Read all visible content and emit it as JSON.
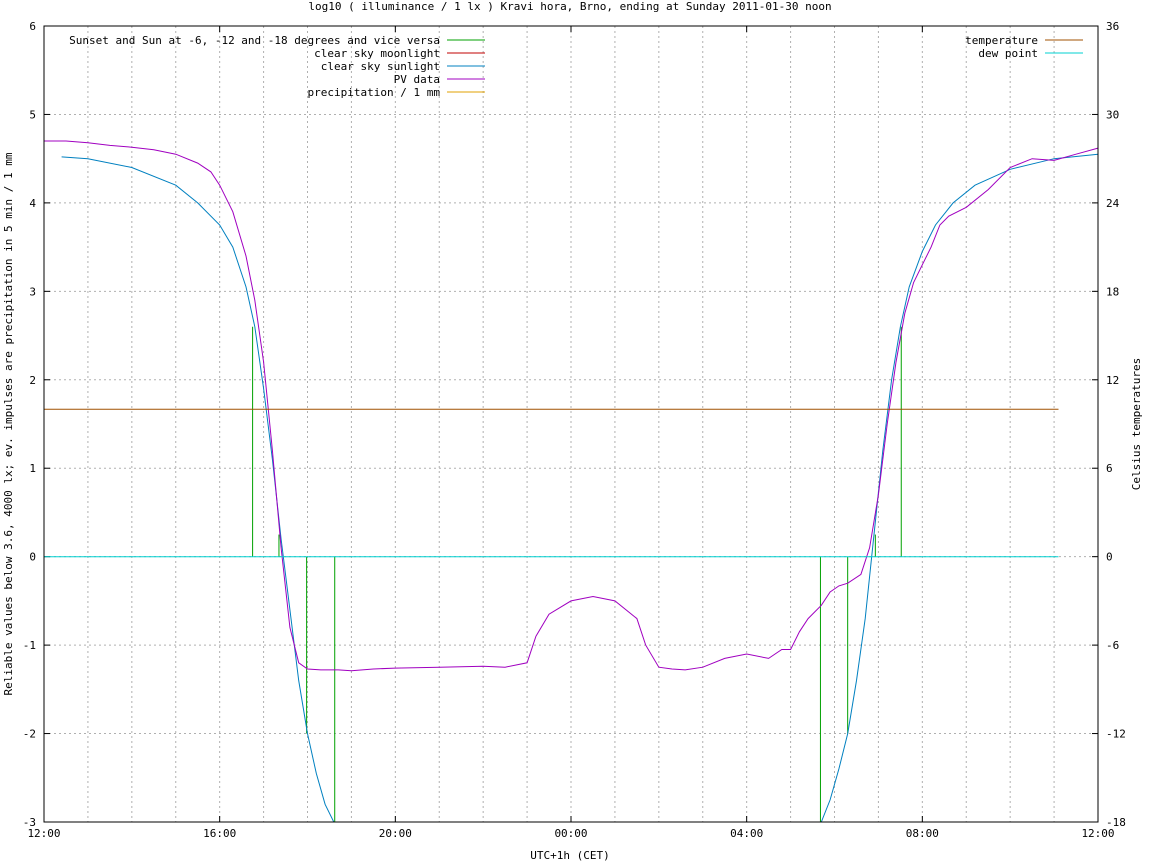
{
  "chart_data": {
    "type": "line",
    "title": "log10 ( illuminance / 1 lx ) Kravi hora, Brno, ending at Sunday 2011-01-30 noon",
    "xlabel": "UTC+1h (CET)",
    "ylabel": "Reliable values below 3.6, 4000 lx; ev. impulses are precipitation in 5 min / 1 mm",
    "y2label": "Celsius temperatures",
    "xlim": [
      0,
      24
    ],
    "ylim": [
      -3,
      6
    ],
    "y2lim": [
      -18,
      36
    ],
    "x_ticks": [
      {
        "value": 0,
        "label": "12:00"
      },
      {
        "value": 4,
        "label": "16:00"
      },
      {
        "value": 8,
        "label": "20:00"
      },
      {
        "value": 12,
        "label": "00:00"
      },
      {
        "value": 16,
        "label": "04:00"
      },
      {
        "value": 20,
        "label": "08:00"
      },
      {
        "value": 24,
        "label": "12:00"
      }
    ],
    "y_ticks": [
      {
        "value": -3,
        "label": "-3"
      },
      {
        "value": -2,
        "label": "-2"
      },
      {
        "value": -1,
        "label": "-1"
      },
      {
        "value": 0,
        "label": "0"
      },
      {
        "value": 1,
        "label": "1"
      },
      {
        "value": 2,
        "label": "2"
      },
      {
        "value": 3,
        "label": "3"
      },
      {
        "value": 4,
        "label": "4"
      },
      {
        "value": 5,
        "label": "5"
      },
      {
        "value": 6,
        "label": "6"
      }
    ],
    "y2_ticks": [
      {
        "value": -18,
        "label": "-18"
      },
      {
        "value": -12,
        "label": "-12"
      },
      {
        "value": -6,
        "label": "-6"
      },
      {
        "value": 0,
        "label": "0"
      },
      {
        "value": 6,
        "label": "6"
      },
      {
        "value": 12,
        "label": "12"
      },
      {
        "value": 18,
        "label": "18"
      },
      {
        "value": 24,
        "label": "24"
      },
      {
        "value": 30,
        "label": "30"
      },
      {
        "value": 36,
        "label": "36"
      }
    ],
    "grid": true,
    "legend_left": [
      {
        "name": "Sunset and Sun at -6, -12 and -18 degrees and vice versa",
        "color": "#00a000"
      },
      {
        "name": "clear sky moonlight",
        "color": "#c00000"
      },
      {
        "name": "clear sky sunlight",
        "color": "#0080c0"
      },
      {
        "name": "PV data",
        "color": "#a000c0"
      },
      {
        "name": "precipitation / 1 mm",
        "color": "#e0a000"
      }
    ],
    "legend_right": [
      {
        "name": "temperature",
        "color": "#a05000"
      },
      {
        "name": "dew point",
        "color": "#00d0d0"
      }
    ],
    "sun_impulses": [
      {
        "x": 4.75,
        "y": 2.6
      },
      {
        "x": 5.35,
        "y": 0.25
      },
      {
        "x": 5.98,
        "y": -2.0
      },
      {
        "x": 6.62,
        "y": -3.0
      },
      {
        "x": 17.68,
        "y": -3.0
      },
      {
        "x": 18.3,
        "y": -2.0
      },
      {
        "x": 18.93,
        "y": 0.25
      },
      {
        "x": 19.52,
        "y": 2.6
      }
    ],
    "series": [
      {
        "name": "clear sky sunlight",
        "color": "#0080c0",
        "x": [
          0.4,
          1,
          2,
          3,
          3.5,
          4,
          4.3,
          4.6,
          4.8,
          5.0,
          5.2,
          5.4,
          5.6,
          5.8,
          6.0,
          6.2,
          6.4,
          6.6,
          17.7,
          17.9,
          18.1,
          18.3,
          18.5,
          18.7,
          18.9,
          19.1,
          19.3,
          19.5,
          19.7,
          20.0,
          20.3,
          20.7,
          21.2,
          22,
          23,
          24
        ],
        "y": [
          4.52,
          4.5,
          4.4,
          4.2,
          4.0,
          3.75,
          3.5,
          3.05,
          2.6,
          1.9,
          1.1,
          0.2,
          -0.6,
          -1.4,
          -2.0,
          -2.45,
          -2.8,
          -3.0,
          -3.0,
          -2.75,
          -2.4,
          -2.0,
          -1.4,
          -0.7,
          0.25,
          1.2,
          2.0,
          2.6,
          3.05,
          3.45,
          3.75,
          4.0,
          4.2,
          4.38,
          4.5,
          4.55
        ]
      },
      {
        "name": "PV data",
        "color": "#a000c0",
        "x": [
          0,
          0.5,
          1,
          1.5,
          2,
          2.5,
          3,
          3.5,
          3.8,
          4.0,
          4.3,
          4.6,
          4.8,
          5.0,
          5.2,
          5.4,
          5.6,
          5.8,
          6.0,
          6.3,
          6.7,
          7,
          7.5,
          8,
          9,
          10,
          10.5,
          11,
          11.2,
          11.5,
          12,
          12.5,
          13,
          13.5,
          13.7,
          14,
          14.3,
          14.6,
          15,
          15.5,
          16,
          16.5,
          16.8,
          17,
          17.2,
          17.4,
          17.7,
          17.9,
          18.1,
          18.3,
          18.6,
          18.8,
          19.0,
          19.2,
          19.4,
          19.6,
          19.8,
          20.0,
          20.2,
          20.4,
          20.6,
          21.0,
          21.5,
          22,
          22.5,
          23,
          23.5,
          24
        ],
        "y": [
          4.7,
          4.7,
          4.68,
          4.65,
          4.63,
          4.6,
          4.55,
          4.45,
          4.35,
          4.2,
          3.9,
          3.4,
          2.9,
          2.2,
          1.2,
          0.1,
          -0.8,
          -1.2,
          -1.27,
          -1.28,
          -1.28,
          -1.29,
          -1.27,
          -1.26,
          -1.25,
          -1.24,
          -1.25,
          -1.2,
          -0.9,
          -0.65,
          -0.5,
          -0.45,
          -0.5,
          -0.7,
          -1.0,
          -1.25,
          -1.27,
          -1.28,
          -1.25,
          -1.15,
          -1.1,
          -1.15,
          -1.05,
          -1.05,
          -0.85,
          -0.7,
          -0.55,
          -0.4,
          -0.33,
          -0.3,
          -0.2,
          0.1,
          0.7,
          1.5,
          2.2,
          2.75,
          3.1,
          3.3,
          3.5,
          3.75,
          3.85,
          3.95,
          4.15,
          4.4,
          4.5,
          4.48,
          4.55,
          4.62
        ]
      },
      {
        "name": "temperature",
        "color": "#a05000",
        "axis": "y2",
        "x": [
          0,
          23.1
        ],
        "y": [
          10,
          10
        ]
      },
      {
        "name": "dew point",
        "color": "#00d0d0",
        "axis": "y2",
        "x": [
          0,
          23.1
        ],
        "y": [
          0,
          0
        ]
      }
    ]
  }
}
